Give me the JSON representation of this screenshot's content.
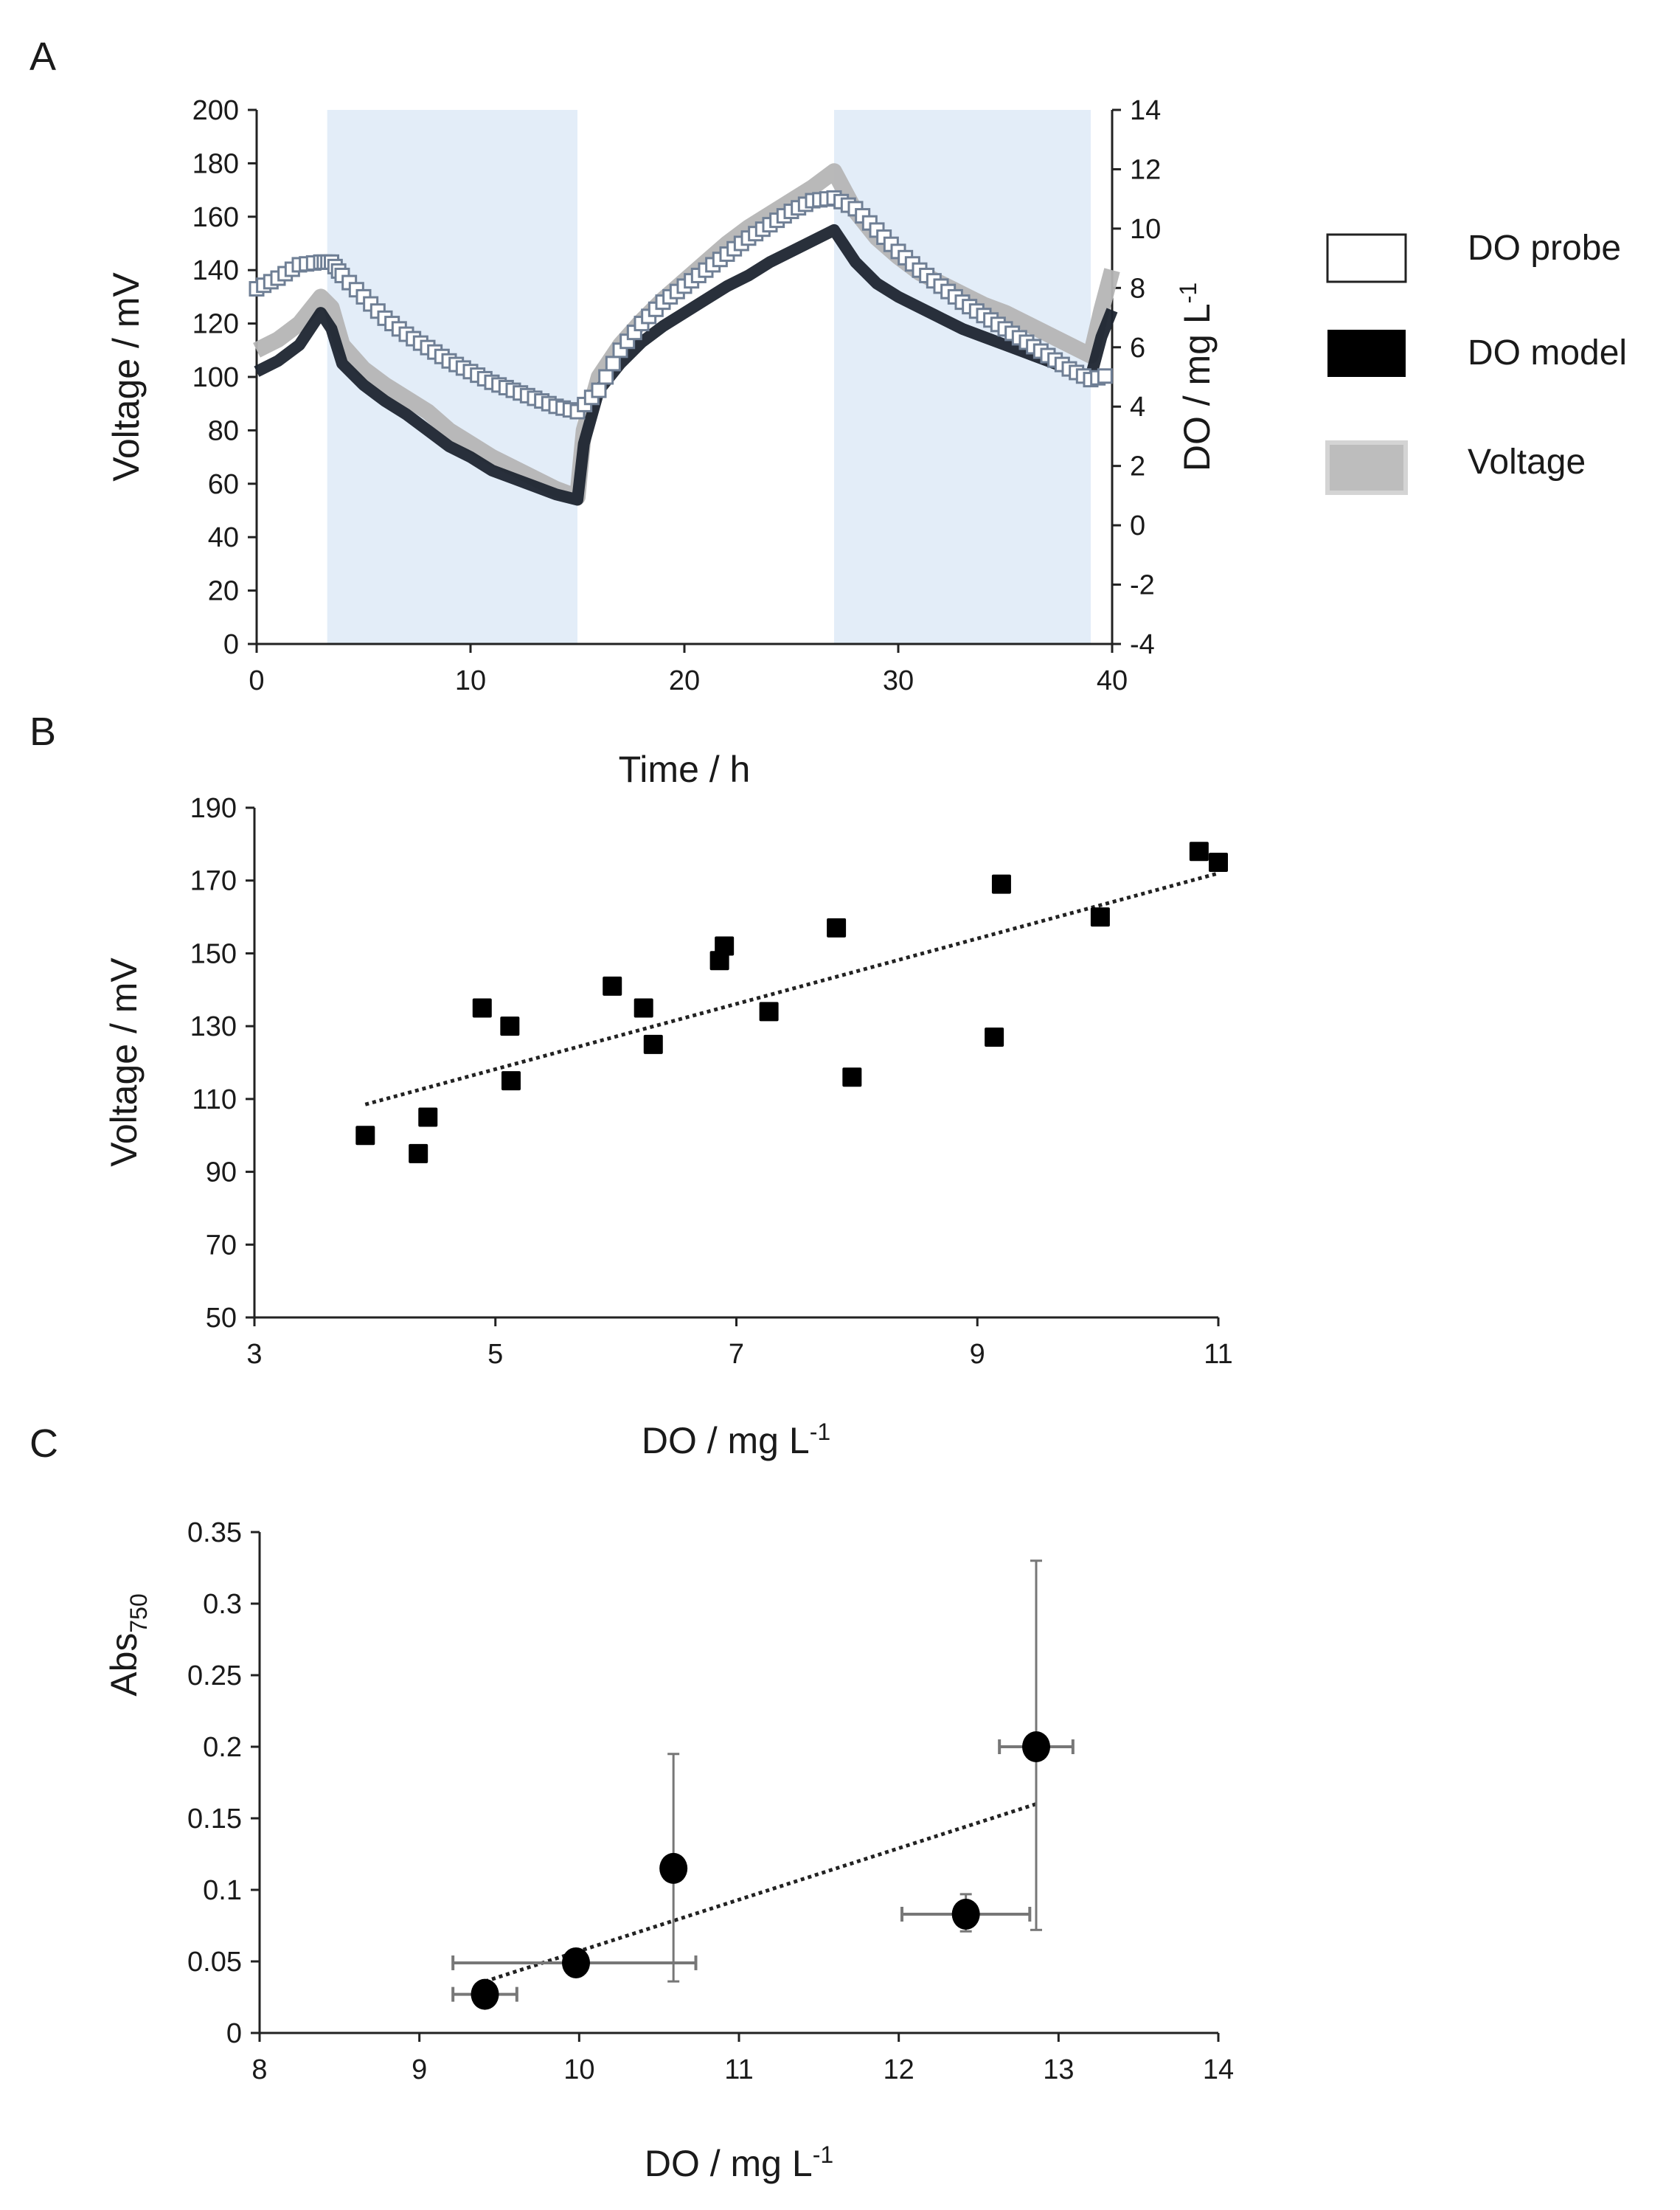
{
  "chart_data": [
    {
      "panel": "A",
      "type": "line",
      "xlabel": "Time / h",
      "ylabel": "Voltage / mV",
      "y2label_main": "DO / mg L",
      "y2label_sup": "-1",
      "xlim": [
        0,
        40
      ],
      "ylim": [
        0,
        200
      ],
      "y2lim": [
        -4,
        14
      ],
      "xticks": [
        0,
        10,
        20,
        30,
        40
      ],
      "yticks": [
        0,
        20,
        40,
        60,
        80,
        100,
        120,
        140,
        160,
        180,
        200
      ],
      "y2ticks": [
        -4,
        -2,
        0,
        2,
        4,
        6,
        8,
        10,
        12,
        14
      ],
      "shaded_intervals_h": [
        [
          3.3,
          15
        ],
        [
          27,
          39
        ]
      ],
      "shade_color": "#e3edf8",
      "legend": {
        "placement": "right",
        "entries": [
          "DO probe",
          "DO model",
          "Voltage"
        ]
      },
      "series": [
        {
          "name": "Voltage",
          "axis": "left",
          "color": "#b5b5b5",
          "x": [
            0,
            1,
            2,
            3,
            3.5,
            4,
            5,
            6,
            7,
            8,
            9,
            10,
            11,
            12,
            13,
            14,
            15,
            15.3,
            16,
            17,
            18,
            19,
            20,
            21,
            22,
            23,
            24,
            25,
            26,
            27,
            28,
            29,
            30,
            31,
            32,
            33,
            34,
            35,
            36,
            37,
            38,
            39,
            39.5,
            40
          ],
          "y": [
            110,
            114,
            120,
            130,
            126,
            112,
            103,
            97,
            92,
            87,
            80,
            75,
            70,
            66,
            62,
            58,
            55,
            80,
            100,
            112,
            121,
            129,
            136,
            143,
            150,
            156,
            161,
            166,
            171,
            177,
            162,
            152,
            145,
            139,
            135,
            131,
            127,
            124,
            120,
            116,
            112,
            108,
            125,
            140
          ]
        },
        {
          "name": "DO model",
          "axis": "right",
          "color": "#1e2530",
          "x": [
            0,
            1,
            2,
            3,
            3.5,
            4,
            5,
            6,
            7,
            8,
            9,
            10,
            11,
            12,
            13,
            14,
            15,
            15.3,
            16,
            17,
            18,
            19,
            20,
            21,
            22,
            23,
            24,
            25,
            26,
            27,
            28,
            29,
            30,
            31,
            32,
            33,
            34,
            35,
            36,
            37,
            38,
            39,
            39.5,
            40
          ],
          "y": [
            5.18,
            5.54,
            6.08,
            7.16,
            6.62,
            5.45,
            4.73,
            4.19,
            3.74,
            3.2,
            2.66,
            2.3,
            1.85,
            1.58,
            1.31,
            1.04,
            0.86,
            2.75,
            4.55,
            5.45,
            6.17,
            6.71,
            7.16,
            7.61,
            8.06,
            8.42,
            8.87,
            9.23,
            9.59,
            9.95,
            8.87,
            8.15,
            7.7,
            7.34,
            6.98,
            6.62,
            6.35,
            6.08,
            5.81,
            5.54,
            5.27,
            5.0,
            6.35,
            7.25
          ]
        },
        {
          "name": "DO probe",
          "axis": "right",
          "color": "#6f7f95",
          "x": [
            0,
            1,
            2,
            3,
            3.5,
            4,
            5,
            6,
            7,
            8,
            9,
            10,
            11,
            12,
            13,
            14,
            15,
            16,
            17,
            18,
            19,
            20,
            21,
            22,
            23,
            24,
            25,
            26,
            27,
            28,
            29,
            30,
            31,
            32,
            33,
            34,
            35,
            36,
            37,
            38,
            39,
            40
          ],
          "y": [
            7.97,
            8.33,
            8.78,
            8.87,
            8.87,
            8.42,
            7.7,
            6.98,
            6.44,
            5.99,
            5.54,
            5.18,
            4.82,
            4.55,
            4.28,
            4.01,
            3.83,
            4.55,
            5.9,
            6.8,
            7.52,
            8.06,
            8.6,
            9.14,
            9.68,
            10.13,
            10.58,
            10.94,
            11.03,
            10.67,
            9.95,
            9.23,
            8.6,
            8.06,
            7.52,
            7.07,
            6.62,
            6.17,
            5.72,
            5.27,
            4.91,
            5.09
          ]
        }
      ]
    },
    {
      "panel": "B",
      "type": "scatter",
      "xlabel_main": "DO / mg L",
      "xlabel_sup": "-1",
      "ylabel": "Voltage / mV",
      "xlim": [
        3,
        11
      ],
      "ylim": [
        50,
        190
      ],
      "xticks": [
        3,
        5,
        7,
        9,
        11
      ],
      "yticks": [
        50,
        70,
        90,
        110,
        130,
        150,
        170,
        190
      ],
      "x": [
        3.92,
        4.36,
        4.44,
        4.89,
        5.12,
        5.13,
        5.97,
        6.23,
        6.31,
        6.86,
        6.9,
        7.27,
        7.83,
        7.96,
        9.14,
        9.2,
        10.02,
        10.84,
        11.0
      ],
      "y": [
        100,
        95,
        105,
        135,
        130,
        115,
        141,
        135,
        125,
        148,
        152,
        134,
        157,
        116,
        127,
        169,
        160,
        178,
        175
      ],
      "trendline": {
        "x": [
          3.92,
          11.0
        ],
        "y": [
          108.5,
          172
        ]
      }
    },
    {
      "panel": "C",
      "type": "scatter",
      "xlabel_main": "DO / mg L",
      "xlabel_sup": "-1",
      "ylabel_main": "Abs",
      "ylabel_sub": "750",
      "xlim": [
        8,
        14
      ],
      "ylim": [
        0,
        0.35
      ],
      "xticks": [
        8,
        9,
        10,
        11,
        12,
        13,
        14
      ],
      "yticks": [
        0,
        0.05,
        0.1,
        0.15,
        0.2,
        0.25,
        0.3,
        0.35
      ],
      "points": [
        {
          "x": 9.41,
          "y": 0.027,
          "xerr": [
            9.21,
            9.61
          ],
          "yerr": null
        },
        {
          "x": 9.98,
          "y": 0.049,
          "xerr": [
            9.21,
            10.73
          ],
          "yerr": null
        },
        {
          "x": 10.59,
          "y": 0.115,
          "xerr": null,
          "yerr": [
            0.036,
            0.195
          ]
        },
        {
          "x": 12.42,
          "y": 0.083,
          "xerr": [
            12.02,
            12.82
          ],
          "yerr": [
            0.071,
            0.097
          ]
        },
        {
          "x": 12.86,
          "y": 0.2,
          "xerr": [
            12.63,
            13.09
          ],
          "yerr": [
            0.072,
            0.33
          ]
        }
      ],
      "trendline": {
        "x": [
          9.41,
          12.86
        ],
        "y": [
          0.036,
          0.16
        ]
      }
    }
  ],
  "panel_labels": [
    "A",
    "B",
    "C"
  ]
}
